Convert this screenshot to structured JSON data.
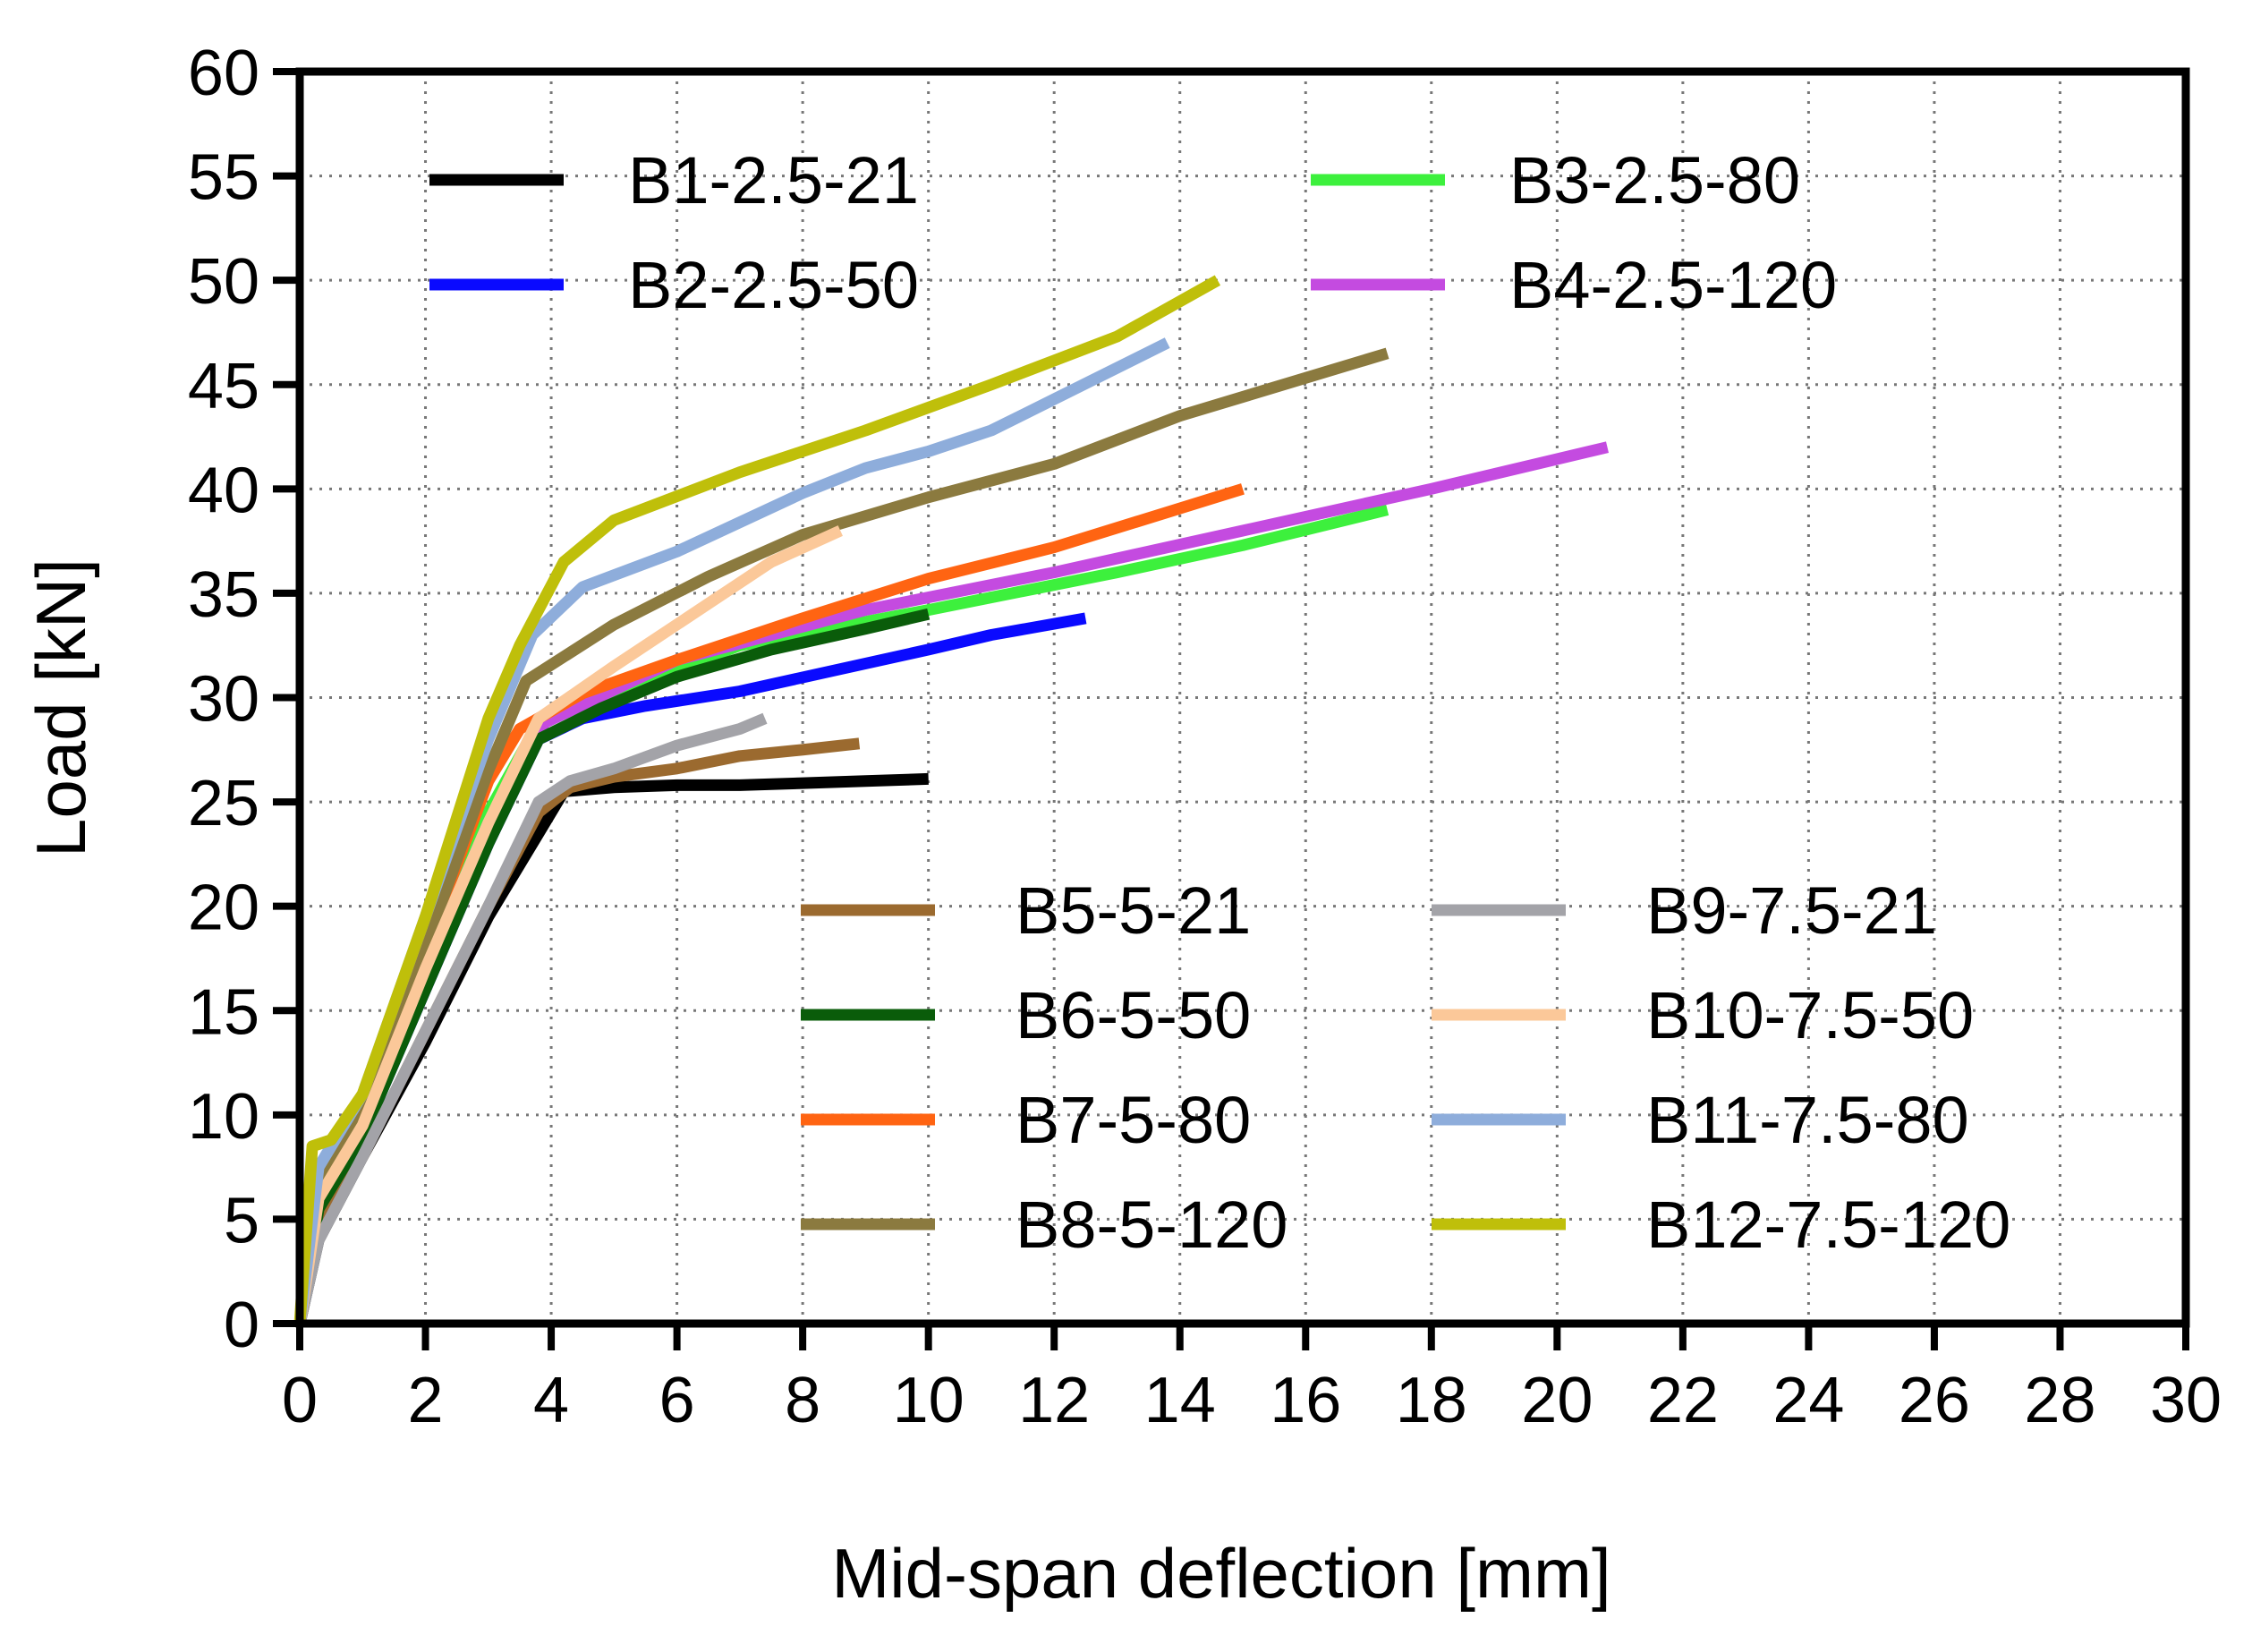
{
  "chart_data": {
    "type": "line",
    "title": "",
    "xlabel": "Mid-span deflection [mm]",
    "ylabel": "Load [kN]",
    "xlim": [
      0,
      30
    ],
    "ylim": [
      0,
      60
    ],
    "xticks": [
      "0",
      "2",
      "4",
      "6",
      "8",
      "10",
      "12",
      "14",
      "16",
      "18",
      "20",
      "22",
      "24",
      "26",
      "28",
      "30"
    ],
    "yticks": [
      "0",
      "5",
      "10",
      "15",
      "20",
      "25",
      "30",
      "35",
      "40",
      "45",
      "50",
      "55",
      "60"
    ],
    "grid": true,
    "legend_placement": "top-left and lower-middle",
    "series": [
      {
        "name": "B1-2.5-21",
        "color": "#000000",
        "points": [
          [
            0,
            0
          ],
          [
            0.3,
            4
          ],
          [
            1,
            8
          ],
          [
            2,
            13.5
          ],
          [
            3,
            19.5
          ],
          [
            3.8,
            23.5
          ],
          [
            4.2,
            25.5
          ],
          [
            5,
            25.7
          ],
          [
            6,
            25.8
          ],
          [
            7,
            25.8
          ],
          [
            8,
            25.9
          ],
          [
            9,
            26
          ],
          [
            10,
            26.1
          ]
        ]
      },
      {
        "name": "B2-2.5-50",
        "color": "#0a0aff",
        "points": [
          [
            0,
            0
          ],
          [
            0.3,
            5.5
          ],
          [
            1,
            9
          ],
          [
            2,
            16
          ],
          [
            3,
            23
          ],
          [
            3.8,
            28
          ],
          [
            4.5,
            29
          ],
          [
            5.5,
            29.6
          ],
          [
            7,
            30.3
          ],
          [
            8.5,
            31.3
          ],
          [
            10,
            32.3
          ],
          [
            11,
            33
          ],
          [
            12.5,
            33.8
          ]
        ]
      },
      {
        "name": "B3-2.5-80",
        "color": "#3df03d",
        "points": [
          [
            0,
            0
          ],
          [
            0.3,
            6
          ],
          [
            1,
            9.5
          ],
          [
            2,
            17
          ],
          [
            3,
            24.5
          ],
          [
            3.8,
            28.8
          ],
          [
            5,
            30.2
          ],
          [
            7,
            32.5
          ],
          [
            10,
            34.2
          ],
          [
            13,
            36
          ],
          [
            15,
            37.3
          ],
          [
            17.3,
            39
          ]
        ]
      },
      {
        "name": "B4-2.5-120",
        "color": "#c44be0",
        "points": [
          [
            0,
            0
          ],
          [
            0.3,
            6
          ],
          [
            1,
            9.5
          ],
          [
            2,
            17
          ],
          [
            3,
            24
          ],
          [
            3.9,
            28.8
          ],
          [
            6,
            31.8
          ],
          [
            9,
            34.2
          ],
          [
            12,
            36
          ],
          [
            15,
            38
          ],
          [
            18,
            40
          ],
          [
            20.8,
            42
          ]
        ]
      },
      {
        "name": "B5-5-21",
        "color": "#9b6a2f",
        "points": [
          [
            0,
            0
          ],
          [
            0.3,
            4.5
          ],
          [
            1,
            8
          ],
          [
            2,
            14
          ],
          [
            3,
            20
          ],
          [
            3.8,
            24.5
          ],
          [
            4.3,
            25.7
          ],
          [
            5,
            26.2
          ],
          [
            6,
            26.6
          ],
          [
            7,
            27.2
          ],
          [
            8,
            27.5
          ],
          [
            8.9,
            27.8
          ]
        ]
      },
      {
        "name": "B6-5-50",
        "color": "#0a5c0a",
        "points": [
          [
            0,
            0
          ],
          [
            0.3,
            5.5
          ],
          [
            1,
            9
          ],
          [
            2,
            16
          ],
          [
            3,
            23
          ],
          [
            3.8,
            28
          ],
          [
            4.8,
            29.5
          ],
          [
            6,
            31
          ],
          [
            7.5,
            32.3
          ],
          [
            9,
            33.3
          ],
          [
            10,
            34
          ]
        ]
      },
      {
        "name": "B7-5-80",
        "color": "#ff6412",
        "points": [
          [
            0,
            0
          ],
          [
            0.3,
            6.5
          ],
          [
            1,
            10
          ],
          [
            2,
            18
          ],
          [
            3,
            26
          ],
          [
            3.5,
            28.5
          ],
          [
            4.5,
            30.2
          ],
          [
            6,
            31.8
          ],
          [
            8,
            33.8
          ],
          [
            10,
            35.7
          ],
          [
            12,
            37.2
          ],
          [
            15,
            40
          ]
        ]
      },
      {
        "name": "B8-5-120",
        "color": "#8b7a3f",
        "points": [
          [
            0,
            0
          ],
          [
            0.3,
            6.5
          ],
          [
            1,
            10
          ],
          [
            2,
            18
          ],
          [
            3,
            26.5
          ],
          [
            3.6,
            30.8
          ],
          [
            5,
            33.5
          ],
          [
            6.5,
            35.8
          ],
          [
            8,
            37.8
          ],
          [
            10,
            39.6
          ],
          [
            12,
            41.2
          ],
          [
            14,
            43.5
          ],
          [
            17.3,
            46.5
          ]
        ]
      },
      {
        "name": "B9-7.5-21",
        "color": "#a3a3a8",
        "points": [
          [
            0,
            0
          ],
          [
            0.3,
            4
          ],
          [
            1,
            8
          ],
          [
            2,
            14
          ],
          [
            3,
            20
          ],
          [
            3.8,
            25
          ],
          [
            4.3,
            26
          ],
          [
            5,
            26.6
          ],
          [
            6,
            27.7
          ],
          [
            7,
            28.5
          ],
          [
            7.4,
            29
          ]
        ]
      },
      {
        "name": "B10-7.5-50",
        "color": "#fbc899",
        "points": [
          [
            0,
            0
          ],
          [
            0.3,
            6
          ],
          [
            1,
            9.5
          ],
          [
            2,
            17
          ],
          [
            3,
            24
          ],
          [
            3.8,
            29
          ],
          [
            5,
            31.5
          ],
          [
            6.5,
            34.5
          ],
          [
            7.5,
            36.5
          ],
          [
            8.6,
            38
          ]
        ]
      },
      {
        "name": "B11-7.5-80",
        "color": "#8eaddb",
        "points": [
          [
            0,
            0
          ],
          [
            0.3,
            7.5
          ],
          [
            1,
            11
          ],
          [
            2,
            19.5
          ],
          [
            3,
            28
          ],
          [
            3.7,
            33
          ],
          [
            4.5,
            35.3
          ],
          [
            6,
            37
          ],
          [
            8,
            39.8
          ],
          [
            9,
            41
          ],
          [
            10,
            41.8
          ],
          [
            11,
            42.8
          ],
          [
            12,
            44.3
          ],
          [
            13.8,
            47
          ]
        ]
      },
      {
        "name": "B12-7.5-120",
        "color": "#bfbf0a",
        "points": [
          [
            0,
            0
          ],
          [
            0.2,
            8.5
          ],
          [
            0.5,
            8.8
          ],
          [
            1,
            11
          ],
          [
            2,
            19.5
          ],
          [
            3,
            29
          ],
          [
            3.5,
            32.5
          ],
          [
            4.2,
            36.5
          ],
          [
            5,
            38.5
          ],
          [
            7,
            40.8
          ],
          [
            9,
            42.8
          ],
          [
            11,
            45
          ],
          [
            13,
            47.3
          ],
          [
            14.6,
            50
          ]
        ]
      }
    ],
    "legend_top": [
      "B1-2.5-21",
      "B3-2.5-80",
      "B2-2.5-50",
      "B4-2.5-120"
    ],
    "legend_bottom": [
      "B5-5-21",
      "B9-7.5-21",
      "B6-5-50",
      "B10-7.5-50",
      "B7-5-80",
      "B11-7.5-80",
      "B8-5-120",
      "B12-7.5-120"
    ]
  }
}
